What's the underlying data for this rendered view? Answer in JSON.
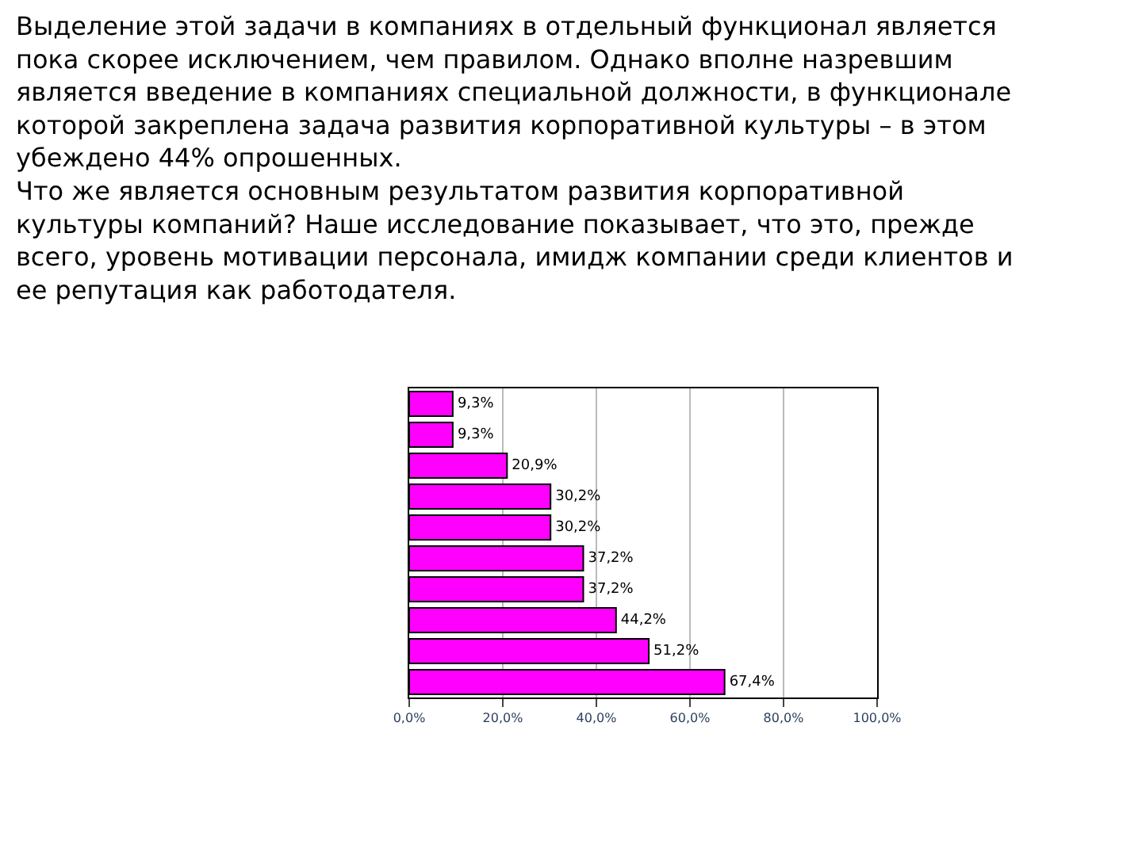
{
  "chart_data": {
    "type": "bar",
    "orientation": "horizontal",
    "annotations": [
      "Выделение этой задачи в компаниях в отдельный функционал является\nпока скорее исключением, чем правилом. Однако вполне назревшим\nявляется введение в компаниях специальной должности, в функционале\nкоторой закреплена задача развития корпоративной культуры – в этом\nубеждено 44% опрошенных.\nЧто же является основным результатом развития корпоративной\nкультуры компаний? Наше исследование показывает, что это, прежде\nвсего, уровень мотивации персонала, имидж компании среди клиентов и\nее репутация как работодателя."
    ],
    "categories": [
      null,
      null,
      null,
      null,
      null,
      null,
      null,
      null,
      null,
      null
    ],
    "values": [
      9.3,
      9.3,
      20.9,
      30.2,
      30.2,
      37.2,
      37.2,
      44.2,
      51.2,
      67.4
    ],
    "value_labels": [
      "9,3%",
      "9,3%",
      "20,9%",
      "30,2%",
      "30,2%",
      "37,2%",
      "37,2%",
      "44,2%",
      "51,2%",
      "67,4%"
    ],
    "color": "#ff00ff",
    "xlim": [
      0,
      100
    ],
    "xticks": [
      {
        "value": 0,
        "label": "0,0%"
      },
      {
        "value": 20,
        "label": "20,0%"
      },
      {
        "value": 40,
        "label": "40,0%"
      },
      {
        "value": 60,
        "label": "60,0%"
      },
      {
        "value": 80,
        "label": "80,0%"
      },
      {
        "value": 100,
        "label": "100,0%"
      }
    ],
    "grid": "x"
  }
}
